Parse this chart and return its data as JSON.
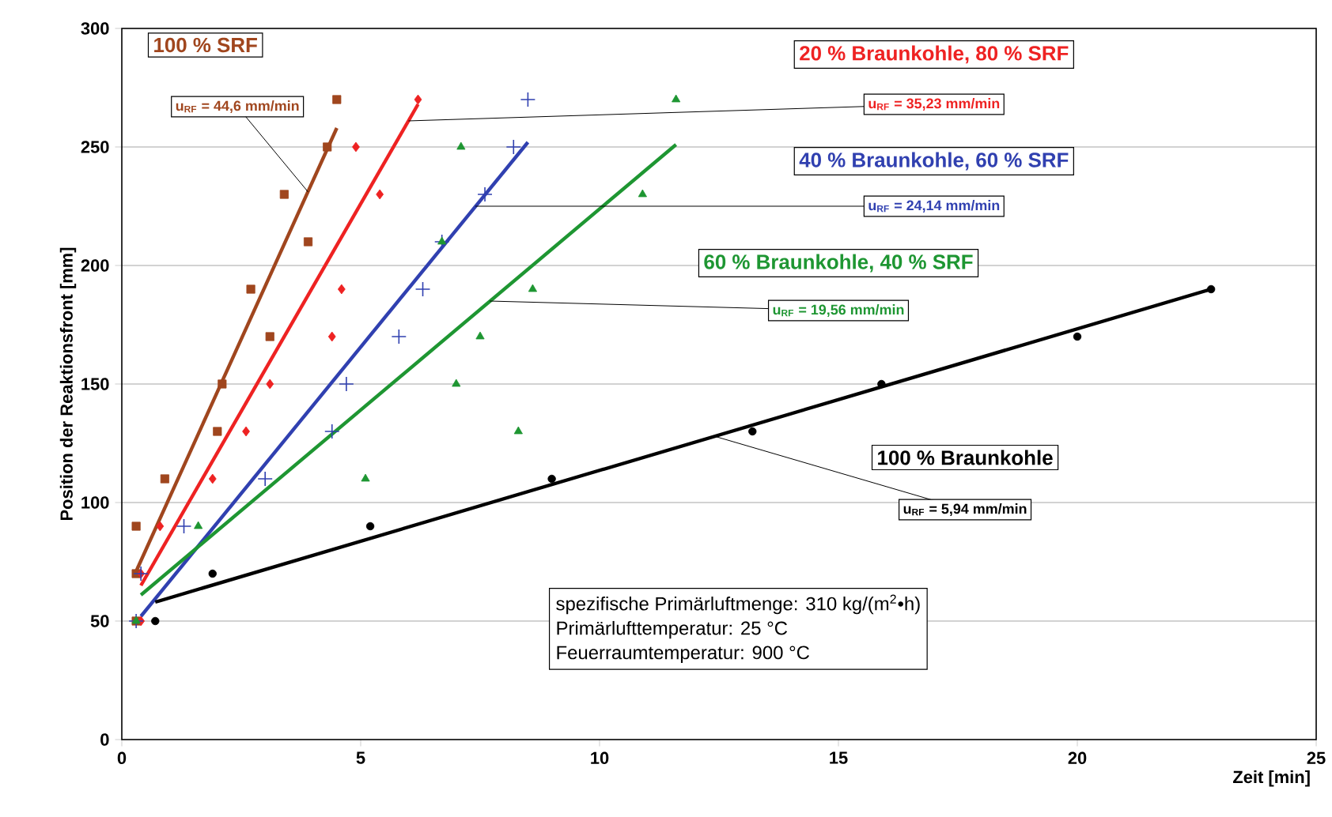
{
  "chart_data": {
    "type": "scatter",
    "xlabel": "Zeit [min]",
    "ylabel": "Position der Reaktionsfront [mm]",
    "xlim": [
      0,
      25
    ],
    "ylim": [
      0,
      300
    ],
    "xticks": [
      0,
      5,
      10,
      15,
      20,
      25
    ],
    "yticks": [
      0,
      50,
      100,
      150,
      200,
      250,
      300
    ],
    "grid": "y",
    "series": [
      {
        "name": "100 % SRF",
        "color": "#a0461e",
        "marker": "square",
        "x": [
          0.3,
          0.3,
          0.3,
          0.9,
          2.0,
          2.1,
          3.1,
          2.7,
          3.9,
          3.4,
          4.3,
          4.5
        ],
        "values": [
          50,
          70,
          90,
          110,
          130,
          150,
          170,
          190,
          210,
          230,
          250,
          270
        ]
      },
      {
        "name": "20 % Braunkohle, 80 % SRF",
        "color": "#ee2222",
        "marker": "diamond",
        "x": [
          0.4,
          0.4,
          0.8,
          1.9,
          2.6,
          3.1,
          4.4,
          4.6,
          5.4,
          4.9,
          6.2
        ],
        "values": [
          50,
          70,
          90,
          110,
          130,
          150,
          170,
          190,
          230,
          250,
          270
        ]
      },
      {
        "name": "40 % Braunkohle, 60 % SRF",
        "color": "#3040b0",
        "marker": "cross",
        "x": [
          0.3,
          0.4,
          1.3,
          3.0,
          4.4,
          4.7,
          5.8,
          6.3,
          6.7,
          7.6,
          8.2,
          8.5
        ],
        "values": [
          50,
          70,
          90,
          110,
          130,
          150,
          170,
          190,
          210,
          230,
          250,
          270
        ]
      },
      {
        "name": "60 % Braunkohle, 40 % SRF",
        "color": "#1e9632",
        "marker": "triangle",
        "x": [
          0.3,
          1.6,
          5.1,
          8.3,
          7.0,
          7.5,
          8.6,
          6.7,
          10.9,
          7.1,
          11.6
        ],
        "values": [
          50,
          90,
          110,
          130,
          150,
          170,
          190,
          210,
          230,
          250,
          270
        ]
      },
      {
        "name": "100 % Braunkohle",
        "color": "#000000",
        "marker": "circle",
        "x": [
          0.7,
          1.9,
          5.2,
          9.0,
          13.2,
          15.9,
          20.0,
          22.8
        ],
        "values": [
          50,
          70,
          90,
          110,
          130,
          150,
          170,
          190
        ]
      },
      {
        "type": "line",
        "color": "#a0461e",
        "marker": "none",
        "x": [
          0.3,
          4.5
        ],
        "values": [
          71,
          258
        ]
      },
      {
        "type": "line",
        "color": "#ee2222",
        "marker": "none",
        "x": [
          0.4,
          6.2
        ],
        "values": [
          65,
          268
        ]
      },
      {
        "type": "line",
        "color": "#3040b0",
        "marker": "none",
        "x": [
          0.4,
          8.5
        ],
        "values": [
          52,
          252
        ]
      },
      {
        "type": "line",
        "color": "#1e9632",
        "marker": "none",
        "x": [
          0.4,
          11.6
        ],
        "values": [
          61,
          251
        ]
      },
      {
        "type": "line",
        "color": "#000000",
        "marker": "none",
        "x": [
          0.7,
          22.8
        ],
        "values": [
          58,
          190
        ]
      }
    ],
    "annotations": [
      {
        "text": "u$_{RF}$ = 44,6 mm/min",
        "x": 3.9,
        "y": 231
      },
      {
        "text": "u$_{RF}$ = 35,23 mm/min",
        "x": 6.0,
        "y": 261
      },
      {
        "text": "u$_{RF}$ = 24,14 mm/min",
        "x": 7.4,
        "y": 225
      },
      {
        "text": "u$_{RF}$ = 19,56 mm/min",
        "x": 7.7,
        "y": 185
      },
      {
        "text": "u$_{RF}$ = 5,94 mm/min",
        "x": 12.4,
        "y": 128
      },
      "spezifische Primärluftmenge: 310 kg/(m$^{2}$•h)",
      "Primärlufttemperatur: 25 °C",
      "Feuerraumtemperatur: 900 °C"
    ]
  }
}
